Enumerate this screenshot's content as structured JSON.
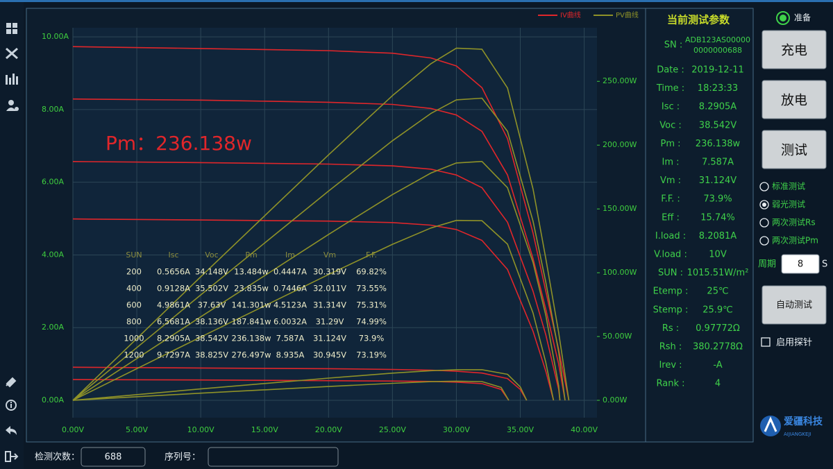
{
  "chart_data": {
    "type": "line",
    "annotation": "Pm：236.138w",
    "xlim": [
      0,
      41
    ],
    "ylim": [
      0,
      10.25
    ],
    "y2lim": [
      0,
      292
    ],
    "grid": true,
    "xticks": [
      {
        "value": 0,
        "label": "0.00V"
      },
      {
        "value": 5,
        "label": "5.00V"
      },
      {
        "value": 10,
        "label": "10.00V"
      },
      {
        "value": 15,
        "label": "15.00V"
      },
      {
        "value": 20,
        "label": "20.00V"
      },
      {
        "value": 25,
        "label": "25.00V"
      },
      {
        "value": 30,
        "label": "30.00V"
      },
      {
        "value": 35,
        "label": "35.00V"
      },
      {
        "value": 40,
        "label": "40.00V"
      }
    ],
    "yticks": [
      {
        "value": 0,
        "label": "0.00A"
      },
      {
        "value": 2,
        "label": "2.00A"
      },
      {
        "value": 4,
        "label": "4.00A"
      },
      {
        "value": 6,
        "label": "6.00A"
      },
      {
        "value": 8,
        "label": "8.00A"
      },
      {
        "value": 10,
        "label": "10.00A"
      }
    ],
    "y2ticks": [
      {
        "value": 0,
        "label": "0.00W"
      },
      {
        "value": 50,
        "label": "50.00W"
      },
      {
        "value": 100,
        "label": "100.00W"
      },
      {
        "value": 150,
        "label": "150.00W"
      },
      {
        "value": 200,
        "label": "200.00W"
      },
      {
        "value": 250,
        "label": "250.00W"
      }
    ],
    "series": [
      {
        "name": "IV曲线",
        "color": "#e0262a",
        "curves": [
          {
            "x": [
              0,
              10,
              20,
              25,
              28,
              30,
              32,
              34,
              36,
              37,
              38,
              38.8
            ],
            "values": [
              9.73,
              9.68,
              9.62,
              9.55,
              9.42,
              9.2,
              8.6,
              7.2,
              4.6,
              3.0,
              1.4,
              0
            ]
          },
          {
            "x": [
              0,
              10,
              20,
              25,
              28,
              30,
              32,
              34,
              36,
              37,
              38,
              38.5
            ],
            "values": [
              8.29,
              8.26,
              8.2,
              8.14,
              8.03,
              7.85,
              7.4,
              6.2,
              3.9,
              2.5,
              1.0,
              0
            ]
          },
          {
            "x": [
              0,
              10,
              20,
              25,
              28,
              30,
              32,
              34,
              36,
              37,
              38,
              38.1
            ],
            "values": [
              6.57,
              6.54,
              6.5,
              6.45,
              6.36,
              6.2,
              5.85,
              4.9,
              3.0,
              1.8,
              0.3,
              0
            ]
          },
          {
            "x": [
              0,
              10,
              20,
              25,
              28,
              30,
              32,
              34,
              36,
              37,
              37.6
            ],
            "values": [
              4.99,
              4.96,
              4.93,
              4.89,
              4.82,
              4.7,
              4.4,
              3.6,
              1.9,
              0.8,
              0
            ]
          },
          {
            "x": [
              0,
              10,
              20,
              25,
              28,
              30,
              32,
              34,
              35,
              35.5
            ],
            "values": [
              0.91,
              0.89,
              0.87,
              0.85,
              0.83,
              0.8,
              0.75,
              0.6,
              0.3,
              0
            ]
          },
          {
            "x": [
              0,
              10,
              20,
              25,
              28,
              30,
              32,
              33.5,
              34.1
            ],
            "values": [
              0.57,
              0.56,
              0.54,
              0.53,
              0.52,
              0.5,
              0.46,
              0.3,
              0
            ]
          }
        ]
      },
      {
        "name": "PV曲线",
        "color": "#8f9228",
        "axis": "y2",
        "curves": [
          {
            "x": [
              0,
              10,
              20,
              25,
              28,
              30,
              32,
              34,
              36,
              37,
              38,
              38.8
            ],
            "values": [
              0,
              96.8,
              192.4,
              238.8,
              263.8,
              276,
              275.2,
              244.8,
              165.6,
              111,
              53.2,
              0
            ]
          },
          {
            "x": [
              0,
              10,
              20,
              25,
              28,
              30,
              32,
              34,
              36,
              37,
              38,
              38.5
            ],
            "values": [
              0,
              82.6,
              164,
              203.5,
              224.8,
              235.5,
              236.8,
              210.8,
              140.4,
              92.5,
              38,
              0
            ]
          },
          {
            "x": [
              0,
              10,
              20,
              25,
              28,
              30,
              32,
              34,
              36,
              37,
              38,
              38.1
            ],
            "values": [
              0,
              65.4,
              130,
              161.3,
              178.1,
              186,
              187.2,
              166.6,
              108,
              66.6,
              11.4,
              0
            ]
          },
          {
            "x": [
              0,
              10,
              20,
              25,
              28,
              30,
              32,
              34,
              36,
              37,
              37.6
            ],
            "values": [
              0,
              49.6,
              98.6,
              122.3,
              135,
              141,
              140.8,
              122.4,
              68.4,
              29.6,
              0
            ]
          },
          {
            "x": [
              0,
              10,
              20,
              25,
              28,
              30,
              32,
              34,
              35,
              35.5
            ],
            "values": [
              0,
              8.9,
              17.4,
              21.3,
              23.2,
              24,
              24,
              20.4,
              10.5,
              0
            ]
          },
          {
            "x": [
              0,
              10,
              20,
              25,
              28,
              30,
              32,
              33.5,
              34.1
            ],
            "values": [
              0,
              5.6,
              10.8,
              13.3,
              14.6,
              15,
              14.7,
              10.1,
              0
            ]
          }
        ]
      }
    ],
    "table": {
      "headers": [
        "SUN",
        "Isc",
        "Voc",
        "Pm",
        "Im",
        "Vm",
        "F.F."
      ],
      "rows": [
        [
          "200",
          "0.5656A",
          "34.148V",
          "13.484w",
          "0.4447A",
          "30.319V",
          "69.82%"
        ],
        [
          "400",
          "0.9128A",
          "35.502V",
          "23.835w",
          "0.7446A",
          "32.011V",
          "73.55%"
        ],
        [
          "600",
          "4.9861A",
          "37.63V",
          "141.301w",
          "4.5123A",
          "31.314V",
          "75.31%"
        ],
        [
          "800",
          "6.5681A",
          "38.136V",
          "187.841w",
          "6.0032A",
          "31.29V",
          "74.99%"
        ],
        [
          "1000",
          "8.2905A",
          "38.542V",
          "236.138w",
          "7.587A",
          "31.124V",
          "73.9%"
        ],
        [
          "1200",
          "9.7297A",
          "38.825V",
          "276.497w",
          "8.935A",
          "30.945V",
          "73.19%"
        ]
      ]
    }
  },
  "params": {
    "title": "当前测试参数",
    "sn": {
      "label": "SN :",
      "value": [
        "ADB123AS00000",
        "0000000688"
      ]
    },
    "rows": [
      [
        "Date :",
        "2019-12-11"
      ],
      [
        "Time :",
        "18:23:33"
      ],
      [
        "Isc :",
        "8.2905A"
      ],
      [
        "Voc :",
        "38.542V"
      ],
      [
        "Pm :",
        "236.138w"
      ],
      [
        "Im :",
        "7.587A"
      ],
      [
        "Vm :",
        "31.124V"
      ],
      [
        "F.F. :",
        "73.9%"
      ],
      [
        "Eff :",
        "15.74%"
      ],
      [
        "I.load :",
        "8.2081A"
      ],
      [
        "V.load :",
        "10V"
      ],
      [
        "SUN :",
        "1015.51W/m²"
      ],
      [
        "Etemp :",
        "25℃"
      ],
      [
        "Stemp :",
        "25.9℃"
      ],
      [
        "Rs :",
        "0.97772Ω"
      ],
      [
        "Rsh :",
        "380.2778Ω"
      ],
      [
        "Irev :",
        "-A"
      ],
      [
        "Rank :",
        "4"
      ]
    ]
  },
  "controls": {
    "status": "准备",
    "buttons": [
      "充电",
      "放电",
      "测试"
    ],
    "modes": [
      "标准测试",
      "弱光测试",
      "两次测试Rs",
      "两次测试Pm"
    ],
    "selected_mode": 1,
    "period_label": "周期",
    "period_value": "8",
    "period_unit": "S",
    "auto_button": "自动测试",
    "probe_label": "启用探针",
    "logo": {
      "name": "爱疆科技",
      "sub": "AIJIANGKEJI"
    }
  },
  "footer": {
    "count_label": "检测次数：",
    "count_value": "688",
    "serial_label": "序列号："
  }
}
